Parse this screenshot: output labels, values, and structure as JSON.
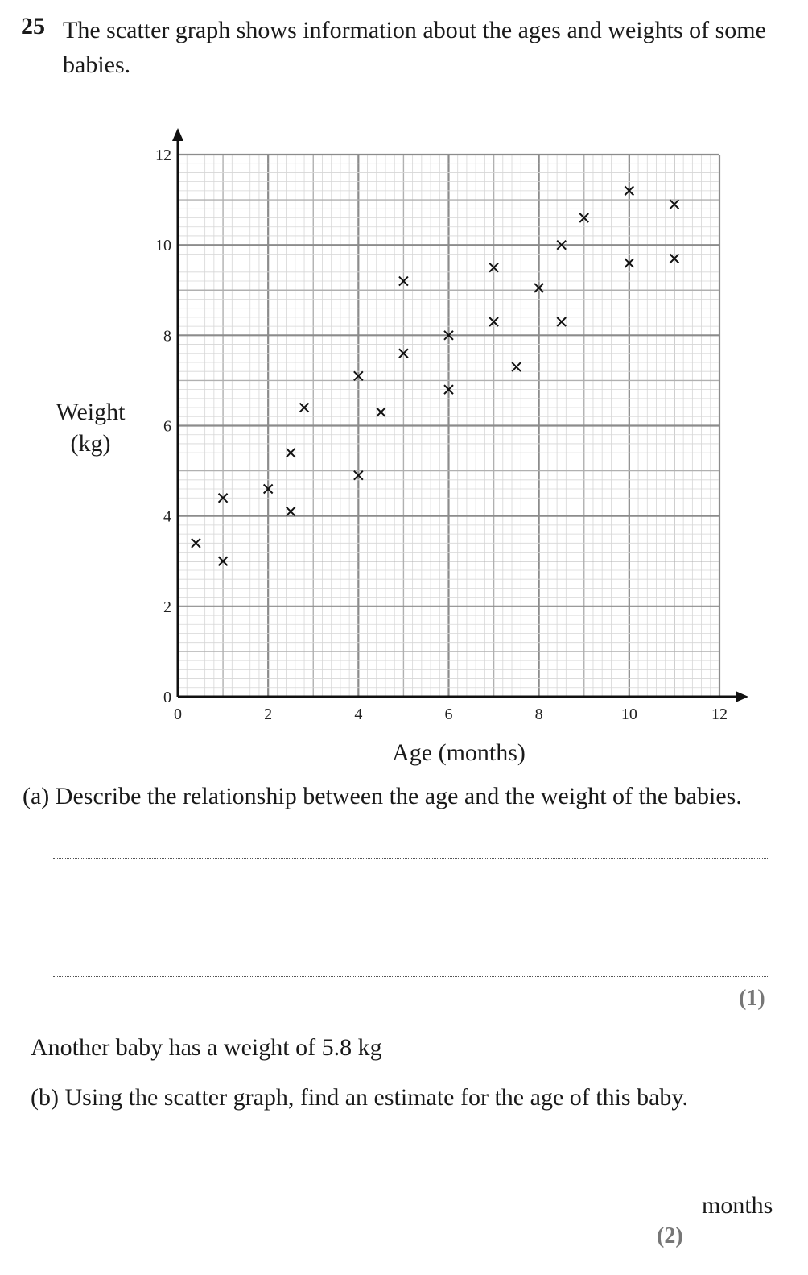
{
  "question": {
    "number": "25",
    "text": "The scatter graph shows information about the ages and weights of some babies."
  },
  "chart_data": {
    "type": "scatter",
    "xlabel": "Age (months)",
    "ylabel_lines": [
      "Weight",
      "(kg)"
    ],
    "xlim": [
      0,
      12
    ],
    "ylim": [
      0,
      12
    ],
    "xticks": [
      "0",
      "2",
      "4",
      "6",
      "8",
      "10",
      "12"
    ],
    "yticks": [
      "0",
      "2",
      "4",
      "6",
      "8",
      "10",
      "12"
    ],
    "grid": true,
    "marker": "×",
    "points": [
      {
        "x": 0.4,
        "y": 3.4
      },
      {
        "x": 1,
        "y": 3.0
      },
      {
        "x": 1,
        "y": 4.4
      },
      {
        "x": 2,
        "y": 4.6
      },
      {
        "x": 2.5,
        "y": 4.1
      },
      {
        "x": 2.5,
        "y": 5.4
      },
      {
        "x": 2.8,
        "y": 6.4
      },
      {
        "x": 4,
        "y": 4.9
      },
      {
        "x": 4,
        "y": 7.1
      },
      {
        "x": 4.5,
        "y": 6.3
      },
      {
        "x": 5,
        "y": 7.6
      },
      {
        "x": 5,
        "y": 9.2
      },
      {
        "x": 6,
        "y": 6.8
      },
      {
        "x": 6,
        "y": 8.0
      },
      {
        "x": 7,
        "y": 8.3
      },
      {
        "x": 7,
        "y": 9.5
      },
      {
        "x": 7.5,
        "y": 7.3
      },
      {
        "x": 8,
        "y": 9.05
      },
      {
        "x": 8.5,
        "y": 8.3
      },
      {
        "x": 8.5,
        "y": 10.0
      },
      {
        "x": 9,
        "y": 10.6
      },
      {
        "x": 10,
        "y": 9.6
      },
      {
        "x": 10,
        "y": 11.2
      },
      {
        "x": 11,
        "y": 9.7
      },
      {
        "x": 11,
        "y": 10.9
      }
    ]
  },
  "part_a": {
    "text": "(a) Describe the relationship between the age and the weight of the babies.",
    "marks": "(1)"
  },
  "info": "Another baby has a weight of 5.8 kg",
  "part_b": {
    "text": "(b) Using the scatter graph, find an estimate for the age of this baby.",
    "unit": "months",
    "marks": "(2)"
  }
}
